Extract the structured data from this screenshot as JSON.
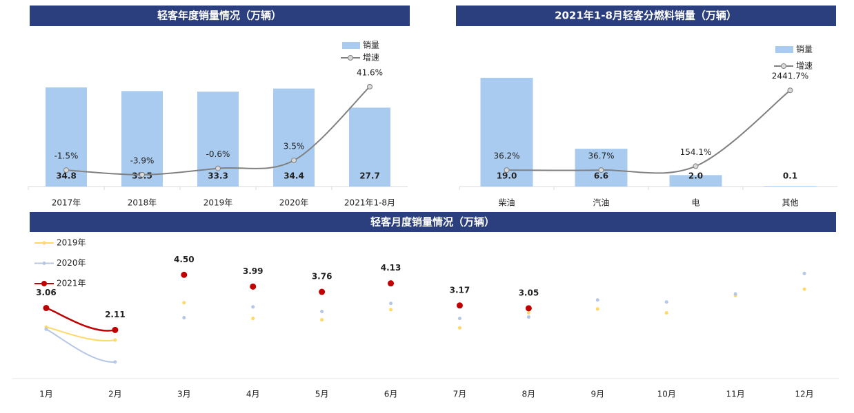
{
  "chart_data": [
    {
      "type": "combo",
      "title": "轻客年度销量情况（万辆）",
      "categories": [
        "2017年",
        "2018年",
        "2019年",
        "2020年",
        "2021年1-8月"
      ],
      "series": [
        {
          "name": "销量",
          "type": "bar",
          "color": "#a9cbef",
          "values": [
            34.8,
            33.5,
            33.3,
            34.4,
            27.7
          ]
        },
        {
          "name": "增速",
          "type": "line",
          "axis": "y2",
          "color": "#808080",
          "values": [
            -1.5,
            -3.9,
            -0.6,
            3.5,
            41.6
          ],
          "value_labels": [
            "-1.5%",
            "-3.9%",
            "-0.6%",
            "3.5%",
            "41.6%"
          ]
        }
      ],
      "ylim": [
        0,
        36
      ],
      "y2lim": [
        -10,
        43
      ]
    },
    {
      "type": "combo",
      "title": "2021年1-8月轻客分燃料销量（万辆）",
      "categories": [
        "柴油",
        "汽油",
        "电",
        "其他"
      ],
      "series": [
        {
          "name": "销量",
          "type": "bar",
          "color": "#a9cbef",
          "values": [
            19.0,
            6.6,
            2.0,
            0.1
          ],
          "value_labels": [
            "19.0",
            "6.6",
            "2.0",
            "0.1"
          ]
        },
        {
          "name": "增速",
          "type": "line",
          "axis": "y2",
          "color": "#808080",
          "values": [
            36.2,
            36.7,
            154.1,
            2441.7
          ],
          "value_labels": [
            "36.2%",
            "36.7%",
            "154.1%",
            "2441.7%"
          ]
        }
      ],
      "ylim": [
        0,
        19
      ],
      "y2lim": [
        -460,
        2820
      ]
    },
    {
      "type": "line",
      "title": "轻客月度销量情况（万辆）",
      "categories": [
        "1月",
        "2月",
        "3月",
        "4月",
        "5月",
        "6月",
        "7月",
        "8月",
        "9月",
        "10月",
        "11月",
        "12月"
      ],
      "series": [
        {
          "name": "2019年",
          "color": "#ffd966",
          "values": [
            2.23,
            1.67,
            3.29,
            2.61,
            2.55,
            2.99,
            2.2,
            2.85,
            3.02,
            2.85,
            3.6,
            3.88
          ]
        },
        {
          "name": "2020年",
          "color": "#b4c7e7",
          "values": [
            2.14,
            0.72,
            2.64,
            3.11,
            2.91,
            3.26,
            2.61,
            2.67,
            3.41,
            3.32,
            3.67,
            4.56
          ]
        },
        {
          "name": "2021年",
          "color": "#c00000",
          "values": [
            3.06,
            2.11,
            4.5,
            3.99,
            3.76,
            4.13,
            3.17,
            3.05,
            null,
            null,
            null,
            null
          ],
          "value_labels": [
            "3.06",
            "2.11",
            "4.50",
            "3.99",
            "3.76",
            "4.13",
            "3.17",
            "3.05",
            null,
            null,
            null,
            null
          ]
        }
      ],
      "ylim": [
        0,
        6
      ]
    }
  ]
}
